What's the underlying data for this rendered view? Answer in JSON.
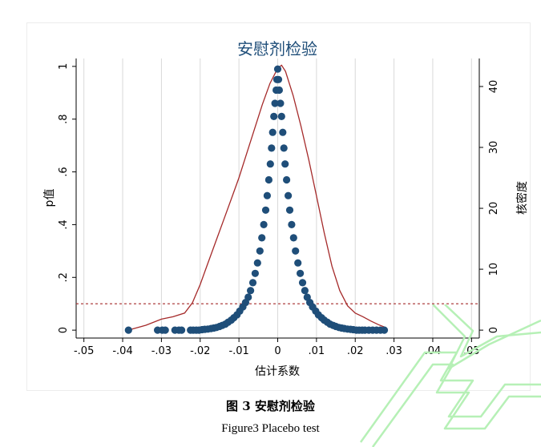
{
  "chart_data": {
    "type": "scatter",
    "title": "安慰剂检验",
    "xlabel": "估计系数",
    "ylabel_left": "p值",
    "ylabel_right": "核密度",
    "xlim": [
      -0.052,
      0.052
    ],
    "ylim_left": [
      -0.03,
      1.03
    ],
    "ylim_right": [
      -1.3,
      44.6
    ],
    "x_ticks": [
      {
        "value": -0.05,
        "label": "-.05"
      },
      {
        "value": -0.04,
        "label": "-.04"
      },
      {
        "value": -0.03,
        "label": "-.03"
      },
      {
        "value": -0.02,
        "label": "-.02"
      },
      {
        "value": -0.01,
        "label": "-.01"
      },
      {
        "value": 0,
        "label": "0"
      },
      {
        "value": 0.01,
        "label": ".01"
      },
      {
        "value": 0.02,
        "label": ".02"
      },
      {
        "value": 0.03,
        "label": ".03"
      },
      {
        "value": 0.04,
        "label": ".04"
      },
      {
        "value": 0.05,
        "label": ".05"
      }
    ],
    "y_ticks_left": [
      {
        "value": 0,
        "label": "0"
      },
      {
        "value": 0.2,
        "label": ".2"
      },
      {
        "value": 0.4,
        "label": ".4"
      },
      {
        "value": 0.6,
        "label": ".6"
      },
      {
        "value": 0.8,
        "label": ".8"
      },
      {
        "value": 1,
        "label": "1"
      }
    ],
    "y_ticks_right": [
      {
        "value": 0,
        "label": "0"
      },
      {
        "value": 10,
        "label": "10"
      },
      {
        "value": 20,
        "label": "20"
      },
      {
        "value": 30,
        "label": "30"
      },
      {
        "value": 40,
        "label": "40"
      }
    ],
    "grid_x": true,
    "reference_line_y": 0.1,
    "series": [
      {
        "role": "p-values",
        "axis": "left",
        "marker": "filled-circle",
        "color": "#1f4e79",
        "points": [
          [
            -0.0385,
            0.0
          ],
          [
            -0.031,
            0.0
          ],
          [
            -0.0298,
            0.0
          ],
          [
            -0.029,
            0.0
          ],
          [
            -0.0265,
            0.0
          ],
          [
            -0.0255,
            0.0
          ],
          [
            -0.0248,
            0.0
          ],
          [
            -0.0225,
            0.0
          ],
          [
            -0.0218,
            0.0
          ],
          [
            -0.021,
            0.0
          ],
          [
            -0.0203,
            0.0
          ],
          [
            -0.0195,
            0.002
          ],
          [
            -0.0188,
            0.003
          ],
          [
            -0.018,
            0.004
          ],
          [
            -0.0172,
            0.006
          ],
          [
            -0.0165,
            0.008
          ],
          [
            -0.0158,
            0.01
          ],
          [
            -0.015,
            0.014
          ],
          [
            -0.0143,
            0.018
          ],
          [
            -0.0135,
            0.023
          ],
          [
            -0.0128,
            0.03
          ],
          [
            -0.012,
            0.038
          ],
          [
            -0.0113,
            0.047
          ],
          [
            -0.0105,
            0.058
          ],
          [
            -0.0098,
            0.072
          ],
          [
            -0.009,
            0.088
          ],
          [
            -0.0083,
            0.105
          ],
          [
            -0.0076,
            0.125
          ],
          [
            -0.007,
            0.15
          ],
          [
            -0.0064,
            0.18
          ],
          [
            -0.0058,
            0.215
          ],
          [
            -0.0052,
            0.255
          ],
          [
            -0.0046,
            0.3
          ],
          [
            -0.0041,
            0.35
          ],
          [
            -0.0036,
            0.4
          ],
          [
            -0.0031,
            0.455
          ],
          [
            -0.0027,
            0.51
          ],
          [
            -0.0023,
            0.57
          ],
          [
            -0.0019,
            0.63
          ],
          [
            -0.0016,
            0.69
          ],
          [
            -0.0013,
            0.75
          ],
          [
            -0.001,
            0.81
          ],
          [
            -0.0007,
            0.86
          ],
          [
            -0.0004,
            0.91
          ],
          [
            -0.0002,
            0.95
          ],
          [
            0.0,
            0.99
          ],
          [
            0.0002,
            0.95
          ],
          [
            0.0004,
            0.91
          ],
          [
            0.0007,
            0.86
          ],
          [
            0.001,
            0.81
          ],
          [
            0.0013,
            0.75
          ],
          [
            0.0016,
            0.69
          ],
          [
            0.0019,
            0.63
          ],
          [
            0.0023,
            0.57
          ],
          [
            0.0027,
            0.51
          ],
          [
            0.0031,
            0.455
          ],
          [
            0.0036,
            0.4
          ],
          [
            0.0041,
            0.35
          ],
          [
            0.0046,
            0.3
          ],
          [
            0.0052,
            0.255
          ],
          [
            0.0058,
            0.215
          ],
          [
            0.0064,
            0.18
          ],
          [
            0.007,
            0.15
          ],
          [
            0.0076,
            0.125
          ],
          [
            0.0083,
            0.105
          ],
          [
            0.009,
            0.088
          ],
          [
            0.0098,
            0.072
          ],
          [
            0.0105,
            0.058
          ],
          [
            0.0113,
            0.047
          ],
          [
            0.012,
            0.038
          ],
          [
            0.0128,
            0.03
          ],
          [
            0.0135,
            0.023
          ],
          [
            0.0143,
            0.018
          ],
          [
            0.015,
            0.014
          ],
          [
            0.0158,
            0.01
          ],
          [
            0.0165,
            0.008
          ],
          [
            0.0172,
            0.006
          ],
          [
            0.018,
            0.004
          ],
          [
            0.0188,
            0.003
          ],
          [
            0.0195,
            0.002
          ],
          [
            0.0203,
            0.0
          ],
          [
            0.021,
            0.0
          ],
          [
            0.0218,
            0.0
          ],
          [
            0.0225,
            0.0
          ],
          [
            0.0235,
            0.0
          ],
          [
            0.0245,
            0.0
          ],
          [
            0.0255,
            0.0
          ],
          [
            0.0265,
            0.0
          ],
          [
            0.0275,
            0.0
          ]
        ]
      },
      {
        "role": "kernel-density",
        "axis": "right",
        "line": "solid",
        "color": "#a52a2a",
        "points": [
          [
            -0.038,
            0.1
          ],
          [
            -0.034,
            0.8
          ],
          [
            -0.03,
            1.8
          ],
          [
            -0.027,
            2.2
          ],
          [
            -0.024,
            2.8
          ],
          [
            -0.022,
            4.5
          ],
          [
            -0.02,
            7.5
          ],
          [
            -0.018,
            11.0
          ],
          [
            -0.016,
            14.5
          ],
          [
            -0.014,
            18.0
          ],
          [
            -0.012,
            21.5
          ],
          [
            -0.01,
            25.0
          ],
          [
            -0.008,
            29.0
          ],
          [
            -0.006,
            33.0
          ],
          [
            -0.004,
            37.0
          ],
          [
            -0.002,
            40.5
          ],
          [
            0.0,
            43.0
          ],
          [
            0.001,
            43.5
          ],
          [
            0.002,
            42.5
          ],
          [
            0.004,
            38.5
          ],
          [
            0.006,
            33.5
          ],
          [
            0.008,
            28.0
          ],
          [
            0.01,
            22.0
          ],
          [
            0.012,
            16.0
          ],
          [
            0.014,
            10.5
          ],
          [
            0.016,
            6.5
          ],
          [
            0.018,
            4.0
          ],
          [
            0.02,
            2.8
          ],
          [
            0.022,
            2.2
          ],
          [
            0.024,
            1.5
          ],
          [
            0.026,
            0.9
          ],
          [
            0.028,
            0.4
          ]
        ]
      }
    ]
  },
  "caption": {
    "cn_label": "图 3  安慰剂检验",
    "en_label": "Figure3 Placebo test"
  },
  "colors": {
    "title": "#1f4e79",
    "points": "#1f4e79",
    "density": "#a52a2a",
    "reference": "#a52a2a",
    "grid": "#d9d9d9",
    "watermark": "#b6f0b6"
  }
}
